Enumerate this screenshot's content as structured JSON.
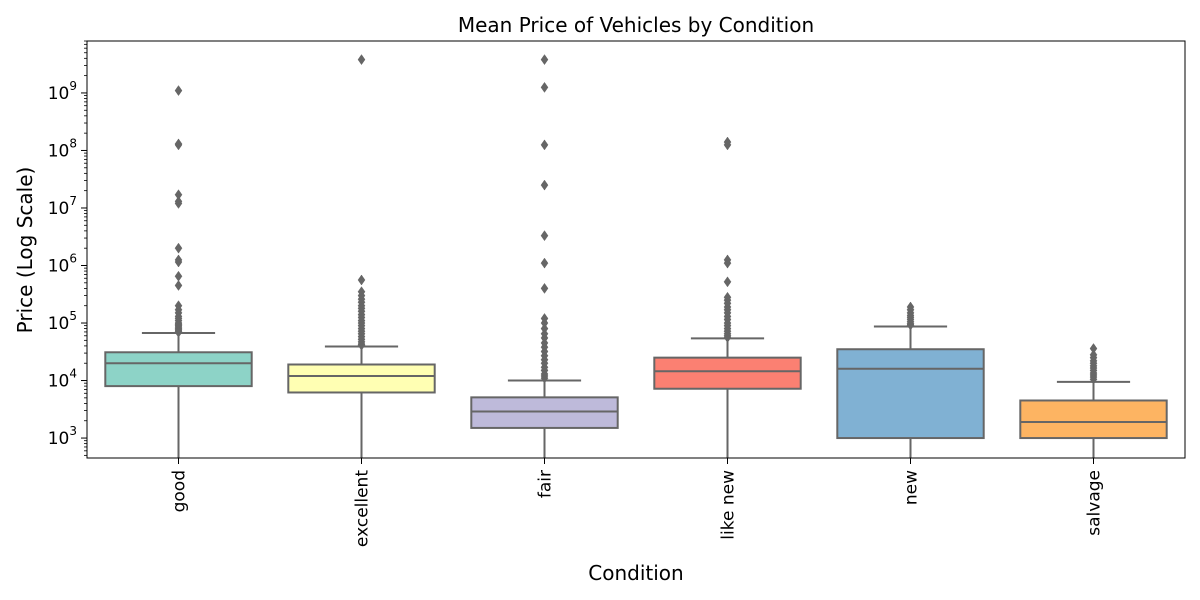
{
  "chart_data": {
    "type": "box",
    "title": "Mean Price of Vehicles by Condition",
    "xlabel": "Condition",
    "ylabel": "Price (Log Scale)",
    "y_scale": "log",
    "ylim": [
      450,
      8000000000
    ],
    "y_ticks": [
      {
        "value": 1000,
        "base": "10",
        "exp": "3"
      },
      {
        "value": 10000,
        "base": "10",
        "exp": "4"
      },
      {
        "value": 100000,
        "base": "10",
        "exp": "5"
      },
      {
        "value": 1000000,
        "base": "10",
        "exp": "6"
      },
      {
        "value": 10000000,
        "base": "10",
        "exp": "7"
      },
      {
        "value": 100000000,
        "base": "10",
        "exp": "8"
      },
      {
        "value": 1000000000,
        "base": "10",
        "exp": "9"
      }
    ],
    "grid": false,
    "outlier_color": "#666666",
    "series": [
      {
        "category": "good",
        "color": "#8dd3c7",
        "whisker_low": 1,
        "q1": 8000,
        "median": 20000,
        "q3": 31000,
        "whisker_high": 67000,
        "outliers": [
          1100000000,
          130000000,
          125000000,
          17000000,
          13000000,
          12000000,
          2000000,
          1250000,
          1150000,
          650000,
          450000,
          200000,
          170000,
          150000,
          130000,
          120000,
          110000,
          100000,
          95000,
          90000,
          85000,
          80000,
          76000,
          72000,
          69000
        ]
      },
      {
        "category": "excellent",
        "color": "#ffffb3",
        "whisker_low": 1,
        "q1": 6200,
        "median": 12000,
        "q3": 19000,
        "whisker_high": 39000,
        "outliers": [
          3800000000,
          560000,
          350000,
          300000,
          260000,
          230000,
          200000,
          180000,
          160000,
          140000,
          125000,
          110000,
          100000,
          90000,
          80000,
          72000,
          65000,
          58000,
          52000,
          47000,
          43000,
          41000
        ]
      },
      {
        "category": "fair",
        "color": "#bebada",
        "whisker_low": 1,
        "q1": 1500,
        "median": 2900,
        "q3": 5100,
        "whisker_high": 10000,
        "outliers": [
          3800000000,
          1250000000,
          125000000,
          25000000,
          3300000,
          1100000,
          400000,
          120000,
          100000,
          80000,
          65000,
          55000,
          45000,
          38000,
          32000,
          27000,
          23000,
          20000,
          17000,
          15000,
          13000,
          12000,
          11000
        ]
      },
      {
        "category": "like new",
        "color": "#fb8072",
        "whisker_low": 1,
        "q1": 7200,
        "median": 14500,
        "q3": 25000,
        "whisker_high": 54000,
        "outliers": [
          140000000,
          125000000,
          1250000,
          1100000,
          520000,
          280000,
          250000,
          220000,
          190000,
          170000,
          150000,
          130000,
          115000,
          100000,
          90000,
          80000,
          72000,
          65000,
          60000,
          56000
        ]
      },
      {
        "category": "new",
        "color": "#80b1d3",
        "whisker_low": 1,
        "q1": 1000,
        "median": 16000,
        "q3": 35000,
        "whisker_high": 87000,
        "outliers": [
          190000,
          170000,
          150000,
          135000,
          125000,
          115000,
          105000,
          97000,
          92000
        ]
      },
      {
        "category": "salvage",
        "color": "#fdb462",
        "whisker_low": 1,
        "q1": 1000,
        "median": 1900,
        "q3": 4500,
        "whisker_high": 9500,
        "outliers": [
          36000,
          28000,
          25000,
          22000,
          20000,
          18000,
          16500,
          15000,
          13500,
          12500,
          11500,
          10500
        ]
      }
    ]
  }
}
